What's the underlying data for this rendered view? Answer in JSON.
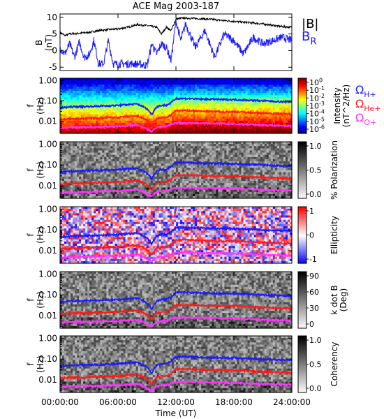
{
  "colors": {
    "black": "#000000",
    "blue": "#1a1aff",
    "red": "#ff1a1a",
    "magenta": "#ff33ff"
  },
  "chart_data": [
    {
      "type": "line",
      "title": "ACE Mag 2003-187",
      "ylabel": "B",
      "yunit": "(nT)",
      "ylim": [
        -6,
        11
      ],
      "yticks": [
        "10",
        "5",
        "0",
        "-5"
      ],
      "legend": [
        "|B|",
        "B_R"
      ],
      "series": [
        {
          "name": "|B|",
          "color": "black",
          "x": [
            0,
            0.5,
            1,
            2,
            3,
            4,
            5,
            6,
            7,
            8,
            9,
            10,
            10.5,
            11,
            11.5,
            12,
            13,
            14,
            15,
            16,
            17,
            18,
            19,
            20,
            21,
            22,
            23,
            24
          ],
          "y": [
            5.5,
            4.5,
            5,
            5.2,
            5.5,
            6,
            6.3,
            6.5,
            7,
            7.8,
            7.5,
            7,
            5,
            7,
            6,
            9.5,
            9.8,
            9.6,
            9.5,
            9.3,
            9,
            8.8,
            8.5,
            8.3,
            8,
            7.6,
            7.2,
            7
          ]
        },
        {
          "name": "B_R",
          "color": "blue",
          "x": [
            0,
            0.5,
            1,
            1.5,
            2,
            2.5,
            3,
            3.5,
            4,
            4.5,
            5,
            5.5,
            6,
            7,
            8,
            9,
            9.5,
            10,
            10.5,
            11,
            11.5,
            12,
            12.5,
            13,
            14,
            15,
            16,
            17,
            18,
            19,
            20,
            21,
            22,
            23,
            24
          ],
          "y": [
            1,
            -1,
            2,
            -2,
            2.5,
            -2,
            -1.5,
            3,
            -4,
            -4,
            3,
            -4,
            -4,
            -4,
            -4,
            -4.5,
            2,
            -1,
            2,
            1,
            -3,
            9,
            3,
            8,
            1,
            6,
            -2,
            5,
            3,
            -1,
            4,
            2,
            3,
            4,
            3
          ]
        }
      ]
    },
    {
      "type": "heatmap",
      "variable": "Intensity",
      "unit": "(nT^2/Hz)",
      "ylabel": "f",
      "yunit": "(Hz)",
      "colorbar_ticks": [
        "10^0",
        "10^-1",
        "10^-2",
        "10^-3",
        "10^-4",
        "10^-5",
        "10^-6"
      ],
      "curve_labels": [
        "Ω_H+",
        "Ω_He+",
        "Ω_O+"
      ]
    },
    {
      "type": "heatmap",
      "variable": "% Polarization",
      "ylabel": "f",
      "yunit": "(Hz)",
      "colorbar_ticks": [
        "1.0",
        "0.5",
        "0.0"
      ]
    },
    {
      "type": "heatmap",
      "variable": "Ellipticity",
      "ylabel": "f",
      "yunit": "(Hz)",
      "colorbar_ticks": [
        "1",
        "0",
        "-1"
      ]
    },
    {
      "type": "heatmap",
      "variable": "k dot B",
      "unit": "(Deg)",
      "ylabel": "f",
      "yunit": "(Hz)",
      "colorbar_ticks": [
        "90",
        "60",
        "30",
        "0"
      ]
    },
    {
      "type": "heatmap",
      "variable": "Coherency",
      "ylabel": "f",
      "yunit": "(Hz)",
      "colorbar_ticks": [
        "1.0",
        "0.5",
        "0.0"
      ]
    },
    {
      "type": "line",
      "series_description": "gyrofrequency curves overlaid on every spectrogram panel",
      "freq_yticks": [
        "1.00",
        "0.10",
        "0.01"
      ],
      "ylim_hz": [
        0.0025,
        1.3
      ],
      "series": [
        {
          "name": "Ω_H+",
          "color": "blue",
          "x": [
            0,
            1,
            2,
            3,
            4,
            5,
            6,
            7,
            8,
            9,
            9.5,
            10,
            10.5,
            11,
            11.5,
            12,
            13,
            14,
            15,
            16,
            17,
            18,
            19,
            20,
            21,
            22,
            23,
            24
          ],
          "y": [
            0.045,
            0.05,
            0.052,
            0.053,
            0.055,
            0.057,
            0.06,
            0.065,
            0.07,
            0.04,
            0.02,
            0.05,
            0.06,
            0.06,
            0.08,
            0.13,
            0.13,
            0.125,
            0.12,
            0.12,
            0.115,
            0.115,
            0.11,
            0.105,
            0.1,
            0.095,
            0.09,
            0.09
          ]
        },
        {
          "name": "Ω_He+",
          "color": "red",
          "x": [
            0,
            1,
            2,
            3,
            4,
            5,
            6,
            7,
            8,
            9,
            9.5,
            10,
            10.5,
            11,
            11.5,
            12,
            13,
            14,
            15,
            16,
            17,
            18,
            19,
            20,
            21,
            22,
            23,
            24
          ],
          "y": [
            0.012,
            0.013,
            0.013,
            0.014,
            0.014,
            0.015,
            0.015,
            0.017,
            0.018,
            0.011,
            0.006,
            0.013,
            0.015,
            0.015,
            0.02,
            0.033,
            0.033,
            0.032,
            0.03,
            0.03,
            0.029,
            0.029,
            0.028,
            0.026,
            0.025,
            0.024,
            0.023,
            0.022
          ]
        },
        {
          "name": "Ω_O+",
          "color": "magenta",
          "x": [
            0,
            1,
            2,
            3,
            4,
            5,
            6,
            7,
            8,
            9,
            9.5,
            10,
            10.5,
            11,
            11.5,
            12,
            13,
            14,
            15,
            16,
            17,
            18,
            19,
            20,
            21,
            22,
            23,
            24
          ],
          "y": [
            0.0045,
            0.005,
            0.005,
            0.0052,
            0.0052,
            0.0055,
            0.0055,
            0.006,
            0.0065,
            0.004,
            0.003,
            0.005,
            0.0055,
            0.0055,
            0.007,
            0.008,
            0.0082,
            0.008,
            0.0078,
            0.0077,
            0.0075,
            0.0072,
            0.007,
            0.0068,
            0.0065,
            0.0062,
            0.006,
            0.0058
          ]
        }
      ]
    },
    {
      "type": "axis",
      "xlabel": "Time (UT)",
      "xlim_hours": [
        0,
        24
      ],
      "xticks": [
        "00:00:00",
        "06:00:00",
        "12:00:00",
        "18:00:00",
        "24:00:00"
      ]
    }
  ]
}
